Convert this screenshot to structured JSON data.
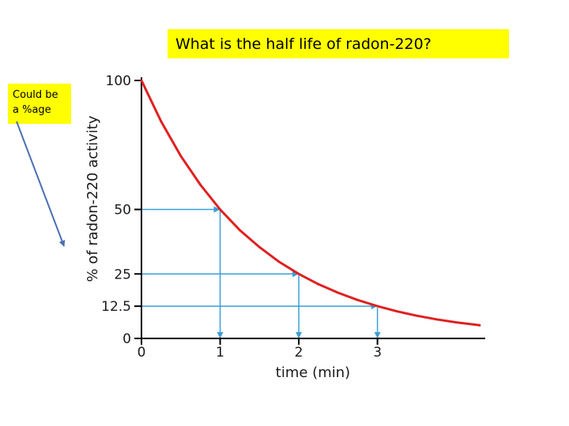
{
  "question": "What is the half life of radon-220?",
  "note": {
    "lines": [
      "Could be",
      "a %age"
    ]
  },
  "colors": {
    "highlight": "#ffff00",
    "curve": "#e02020",
    "guide": "#3a9fd8",
    "note_arrow": "#4a6fb0",
    "axis": "#000000"
  },
  "chart_data": {
    "type": "line",
    "title": "",
    "xlabel": "time (min)",
    "ylabel": "% of radon-220 activity",
    "xlim": [
      0,
      4.35
    ],
    "ylim": [
      0,
      100
    ],
    "x_ticks": [
      0,
      1,
      2,
      3
    ],
    "x_tick_labels": [
      "0",
      "1",
      "2",
      "3"
    ],
    "y_ticks": [
      0,
      12.5,
      25,
      50,
      100
    ],
    "y_tick_labels": [
      "0",
      "12.5",
      "25",
      "50",
      "100"
    ],
    "series": [
      {
        "x": [
          0,
          0.25,
          0.5,
          0.75,
          1,
          1.25,
          1.5,
          1.75,
          2,
          2.25,
          2.5,
          2.75,
          3,
          3.25,
          3.5,
          3.75,
          4,
          4.3
        ],
        "y": [
          100,
          84.1,
          70.7,
          59.5,
          50,
          42.0,
          35.4,
          29.7,
          25,
          21.0,
          17.7,
          14.9,
          12.5,
          10.5,
          8.8,
          7.4,
          6.25,
          5.1
        ]
      }
    ],
    "half_life_markers": [
      {
        "x": 1,
        "y": 50
      },
      {
        "x": 2,
        "y": 25
      },
      {
        "x": 3,
        "y": 12.5
      }
    ],
    "grid": false,
    "legend": "none"
  }
}
